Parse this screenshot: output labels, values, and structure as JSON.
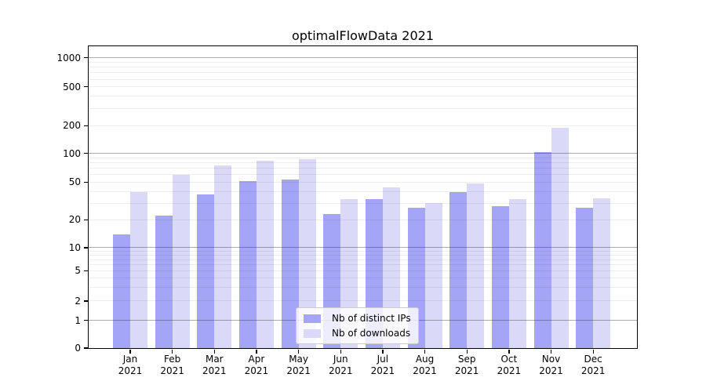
{
  "title": "optimalFlowData 2021",
  "chart_data": {
    "type": "bar",
    "title": "optimalFlowData 2021",
    "categories": [
      "Jan",
      "Feb",
      "Mar",
      "Apr",
      "May",
      "Jun",
      "Jul",
      "Aug",
      "Sep",
      "Oct",
      "Nov",
      "Dec"
    ],
    "category_year": "2021",
    "series": [
      {
        "name": "Nb of distinct IPs",
        "color": "#a5a5f5",
        "values": [
          14,
          22,
          37,
          51,
          53,
          23,
          33,
          27,
          39,
          28,
          104,
          27
        ]
      },
      {
        "name": "Nb of downloads",
        "color": "#dadaf8",
        "values": [
          39,
          60,
          75,
          84,
          87,
          33,
          44,
          30,
          48,
          33,
          190,
          34
        ]
      }
    ],
    "xlabel": "",
    "ylabel": "",
    "yscale": "symlog",
    "yticks": [
      0,
      1,
      2,
      5,
      10,
      20,
      50,
      100,
      200,
      500,
      1000
    ],
    "ylim": [
      0,
      1300
    ],
    "grid": true,
    "legend_position": "lower center"
  }
}
